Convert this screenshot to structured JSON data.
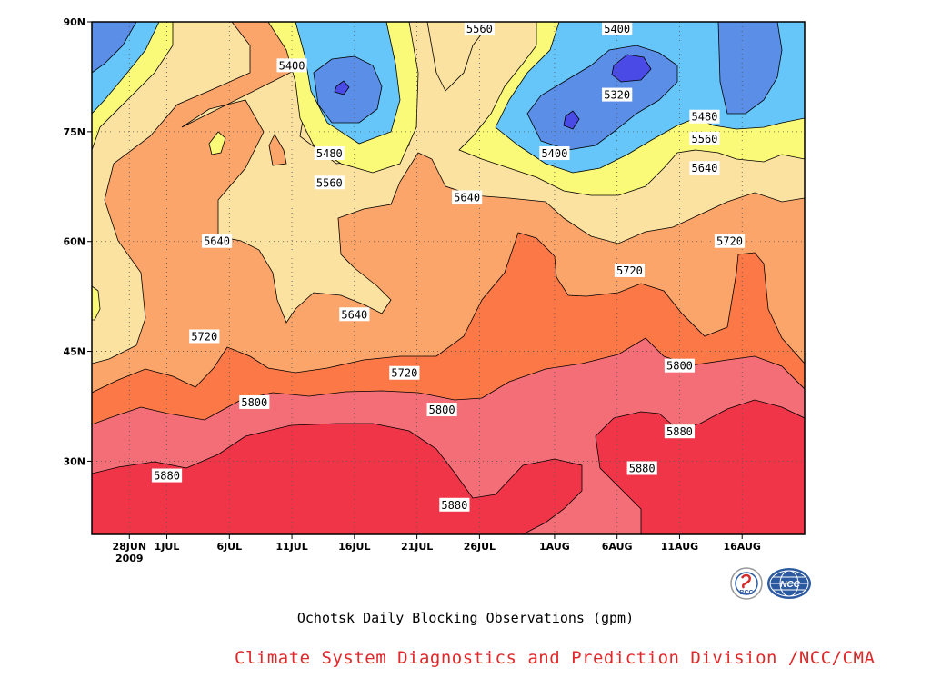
{
  "chart_data": {
    "type": "heatmap",
    "subtype": "filled-contour (time-latitude)",
    "title": "Ochotsk Daily Blocking Observations (gpm)",
    "variable_unit": "gpm",
    "x_axis": {
      "ticks": [
        "28JUN",
        "1JUL",
        "6JUL",
        "11JUL",
        "16JUL",
        "21JUL",
        "26JUL",
        "1AUG",
        "6AUG",
        "11AUG",
        "16AUG"
      ],
      "year_label": "2009",
      "range": [
        "2009-06-25",
        "2009-08-21"
      ]
    },
    "y_axis": {
      "ticks": [
        "30N",
        "45N",
        "60N",
        "75N",
        "90N"
      ],
      "range": [
        20,
        90
      ],
      "unit": "degrees north"
    },
    "grid": "dotted",
    "contour_levels": [
      5320,
      5400,
      5480,
      5560,
      5640,
      5720,
      5800,
      5880
    ],
    "color_scale": {
      "below_5320": "#4a4ae6",
      "5320_5400": "#5b8ee6",
      "5400_5480": "#66c6fa",
      "5480_5560": "#fafa78",
      "5560_5640": "#fce2a0",
      "5640_5720": "#fca56a",
      "5720_5800": "#fc7846",
      "5800_5880": "#f46e78",
      "above_5880": "#f03548"
    },
    "contour_labels": [
      {
        "value": "5400",
        "near": "11JUL, 84N"
      },
      {
        "value": "5480",
        "near": "14JUL, 72N"
      },
      {
        "value": "5560",
        "near": "14JUL, 68N"
      },
      {
        "value": "5560",
        "near": "26JUL, 89N"
      },
      {
        "value": "5400",
        "near": "6AUG, 89N"
      },
      {
        "value": "5320",
        "near": "6AUG, 80N"
      },
      {
        "value": "5400",
        "near": "1AUG, 72N"
      },
      {
        "value": "5480",
        "near": "13AUG, 77N"
      },
      {
        "value": "5560",
        "near": "13AUG, 74N"
      },
      {
        "value": "5640",
        "near": "13AUG, 70N"
      },
      {
        "value": "5640",
        "near": "25JUL, 66N"
      },
      {
        "value": "5640",
        "near": "5JUL, 60N"
      },
      {
        "value": "5640",
        "near": "16JUL, 50N"
      },
      {
        "value": "5720",
        "near": "15AUG, 60N"
      },
      {
        "value": "5720",
        "near": "7AUG, 56N"
      },
      {
        "value": "5720",
        "near": "4JUL, 47N"
      },
      {
        "value": "5720",
        "near": "20JUL, 42N"
      },
      {
        "value": "5800",
        "near": "8JUL, 38N"
      },
      {
        "value": "5800",
        "near": "23JUL, 37N"
      },
      {
        "value": "5800",
        "near": "11AUG, 43N"
      },
      {
        "value": "5880",
        "near": "11AUG, 34N"
      },
      {
        "value": "5880",
        "near": "1JUL, 28N"
      },
      {
        "value": "5880",
        "near": "8AUG, 29N"
      },
      {
        "value": "5880",
        "near": "24JUL, 24N"
      }
    ]
  },
  "caption": "Ochotsk Daily Blocking Observations (gpm)",
  "credit": "Climate System Diagnostics and Prediction Division /NCC/CMA",
  "logos": [
    {
      "icon": "bcc-logo-icon",
      "text": "BCC"
    },
    {
      "icon": "ncc-logo-icon",
      "text": "NCC"
    }
  ]
}
